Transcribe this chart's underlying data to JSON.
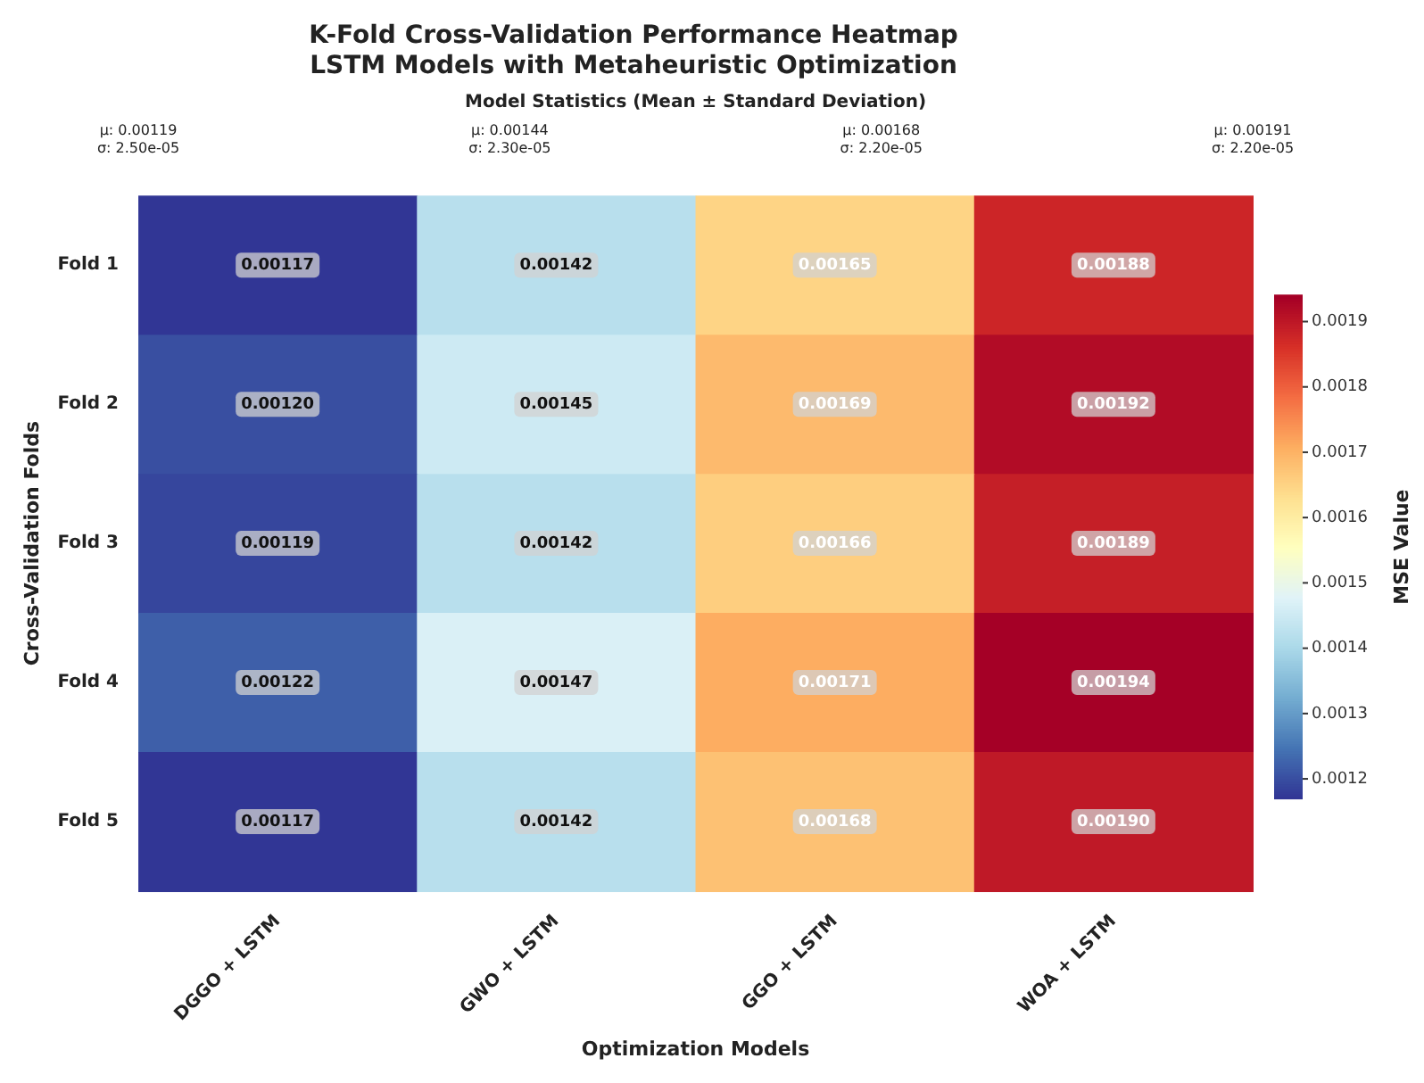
{
  "chart_data": {
    "type": "heatmap",
    "title": "K-Fold Cross-Validation Performance Heatmap",
    "subtitle": "LSTM Models with Metaheuristic Optimization",
    "xlabel": "Optimization Models",
    "ylabel": "Cross-Validation Folds",
    "clabel": "MSE Value",
    "categories": [
      "DGGO + LSTM",
      "GWO + LSTM",
      "GGO + LSTM",
      "WOA + LSTM"
    ],
    "y_categories": [
      "Fold 1",
      "Fold 2",
      "Fold 3",
      "Fold 4",
      "Fold 5"
    ],
    "cells": [
      [
        0.00117,
        0.00142,
        0.00165,
        0.00188
      ],
      [
        0.0012,
        0.00145,
        0.00169,
        0.00192
      ],
      [
        0.00119,
        0.00142,
        0.00166,
        0.00189
      ],
      [
        0.00122,
        0.00147,
        0.00171,
        0.00194
      ],
      [
        0.00117,
        0.00142,
        0.00168,
        0.0019
      ]
    ],
    "cell_labels": [
      [
        "0.00117",
        "0.00142",
        "0.00165",
        "0.00188"
      ],
      [
        "0.00120",
        "0.00145",
        "0.00169",
        "0.00192"
      ],
      [
        "0.00119",
        "0.00142",
        "0.00166",
        "0.00189"
      ],
      [
        "0.00122",
        "0.00147",
        "0.00171",
        "0.00194"
      ],
      [
        "0.00117",
        "0.00142",
        "0.00168",
        "0.00190"
      ]
    ],
    "clim": [
      0.00117,
      0.00194
    ],
    "cticks": [
      0.0012,
      0.0013,
      0.0014,
      0.0015,
      0.0016,
      0.0017,
      0.0018,
      0.0019
    ],
    "annotations": [
      "Model Statistics (Mean ± Standard Deviation)",
      "μ: 0.00119\nσ: 2.50e-05",
      "μ: 0.00144\nσ: 2.30e-05",
      "μ: 0.00168\nσ: 2.20e-05",
      "μ: 0.00191\nσ: 2.20e-05"
    ]
  }
}
